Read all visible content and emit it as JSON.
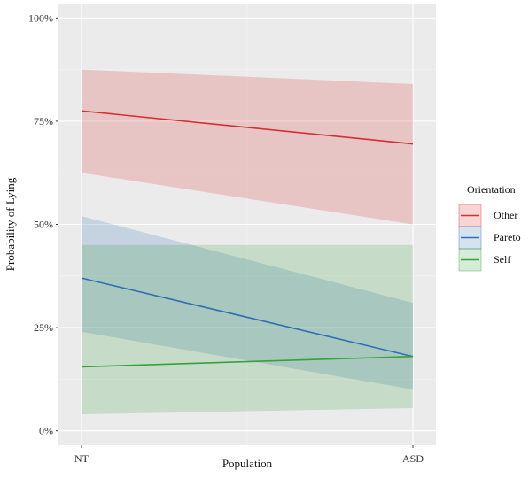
{
  "chart_data": {
    "type": "line",
    "xlabel": "Population",
    "ylabel": "Probability of Lying",
    "categories": [
      "NT",
      "ASD"
    ],
    "y_ticks": [
      "0%",
      "25%",
      "50%",
      "75%",
      "100%"
    ],
    "ylim": [
      0,
      1
    ],
    "grid": true,
    "legend_position": "right",
    "legend_title": "Orientation",
    "series": [
      {
        "name": "Other",
        "color": "#d62f2f",
        "values": [
          0.775,
          0.695
        ],
        "lower": [
          0.625,
          0.5
        ],
        "upper": [
          0.875,
          0.84
        ]
      },
      {
        "name": "Pareto",
        "color": "#2f6fb5",
        "values": [
          0.37,
          0.18
        ],
        "lower": [
          0.24,
          0.1
        ],
        "upper": [
          0.52,
          0.31
        ]
      },
      {
        "name": "Self",
        "color": "#36a13c",
        "values": [
          0.155,
          0.18
        ],
        "lower": [
          0.04,
          0.055
        ],
        "upper": [
          0.45,
          0.45
        ]
      }
    ]
  }
}
